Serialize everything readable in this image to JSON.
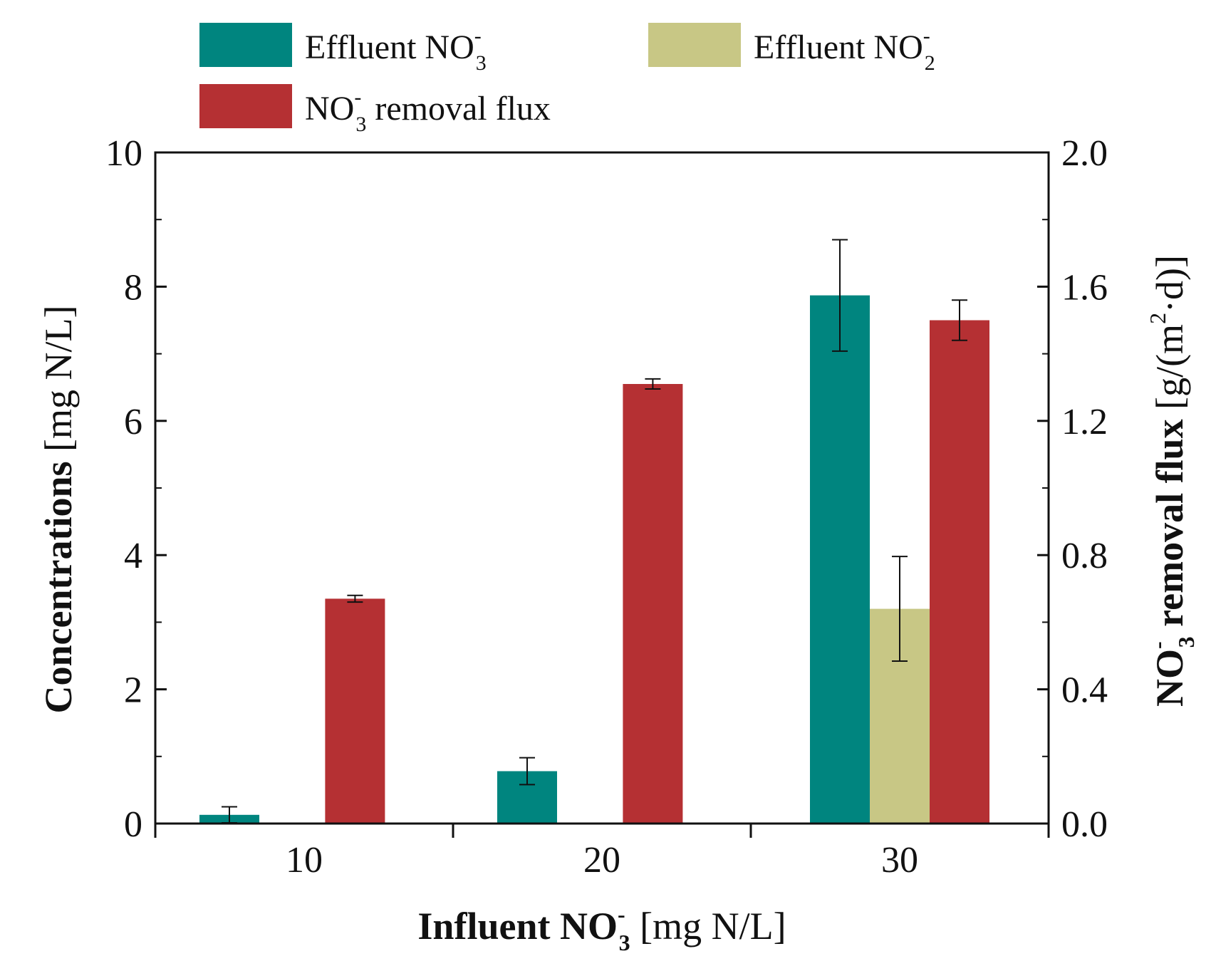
{
  "chart_data": {
    "type": "bar",
    "categories": [
      "10",
      "20",
      "30"
    ],
    "xlabel": {
      "bold_part": "Influent NO",
      "sub": "3",
      "sup": "-",
      "rest": " [mg N/L]"
    },
    "ylabel_left": {
      "bold_part": "Concentrations",
      "rest": " [mg N/L]"
    },
    "ylabel_right": {
      "bold_part": "NO",
      "sub": "3",
      "sup": "-",
      "bold_rest": " removal flux",
      "rest_1": " [g/(m",
      "rest_sup": "2",
      "rest_2": "·d)]"
    },
    "ylim_left": [
      0,
      10
    ],
    "yticks_left": [
      "0",
      "2",
      "4",
      "6",
      "8",
      "10"
    ],
    "ylim_right": [
      0,
      2.0
    ],
    "yticks_right": [
      "0.0",
      "0.4",
      "0.8",
      "1.2",
      "1.6",
      "2.0"
    ],
    "series": [
      {
        "name": "Effluent NO3-",
        "legend": {
          "text": "Effluent NO",
          "sub": "3",
          "sup": "-",
          "rest": ""
        },
        "axis": "left",
        "color": "#00857f",
        "values": [
          0.13,
          0.78,
          7.87
        ],
        "errors": [
          0.12,
          0.2,
          0.83
        ]
      },
      {
        "name": "Effluent NO2-",
        "legend": {
          "text": "Effluent NO",
          "sub": "2",
          "sup": "-",
          "rest": ""
        },
        "axis": "left",
        "color": "#c8c785",
        "values": [
          null,
          null,
          3.2
        ],
        "errors": [
          null,
          null,
          0.78
        ]
      },
      {
        "name": "NO3- removal flux",
        "legend": {
          "text": "NO",
          "sub": "3",
          "sup": "-",
          "rest": " removal flux"
        },
        "axis": "right",
        "color": "#b53033",
        "values": [
          0.67,
          1.31,
          1.5
        ],
        "errors": [
          0.01,
          0.015,
          0.06
        ]
      }
    ]
  }
}
